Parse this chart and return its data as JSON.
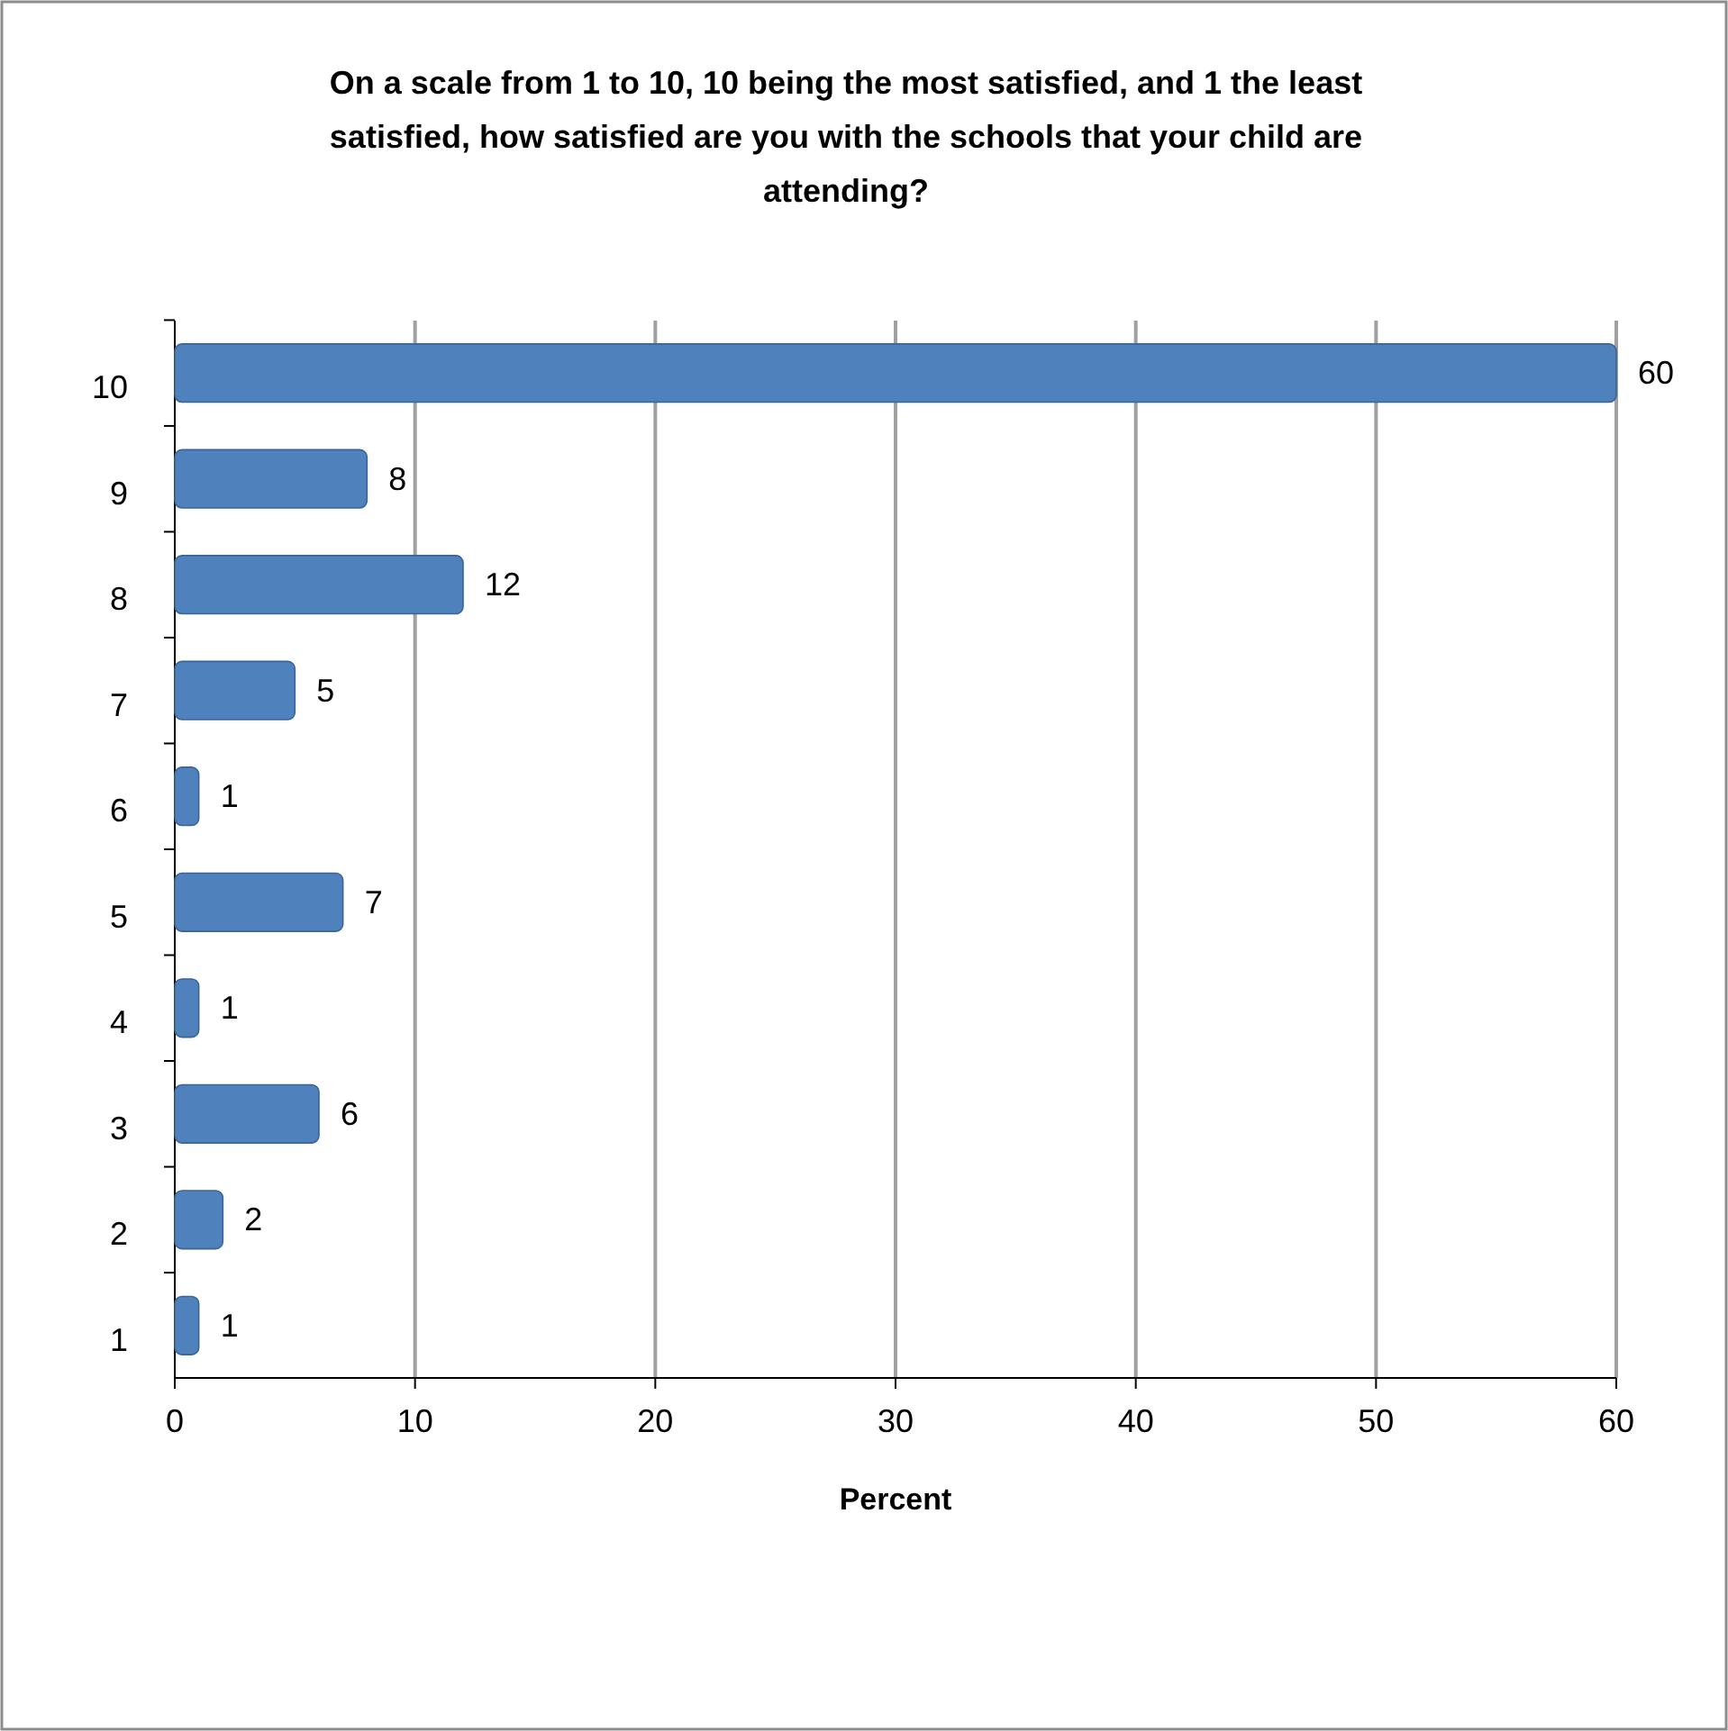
{
  "chart_data": {
    "type": "bar",
    "orientation": "horizontal",
    "title": "On a scale from 1 to 10, 10 being the most satisfied, and 1 the least satisfied, how satisfied are you with the schools that your child are attending?",
    "xlabel": "Percent",
    "categories": [
      "10",
      "9",
      "8",
      "7",
      "6",
      "5",
      "4",
      "3",
      "2",
      "1"
    ],
    "values": [
      60,
      8,
      12,
      5,
      1,
      7,
      1,
      6,
      2,
      1
    ],
    "color": "#4f81bd",
    "xlim": [
      0,
      60
    ],
    "xticks": [
      0,
      10,
      20,
      30,
      40,
      50,
      60
    ],
    "grid": "x",
    "data_labels": true
  }
}
